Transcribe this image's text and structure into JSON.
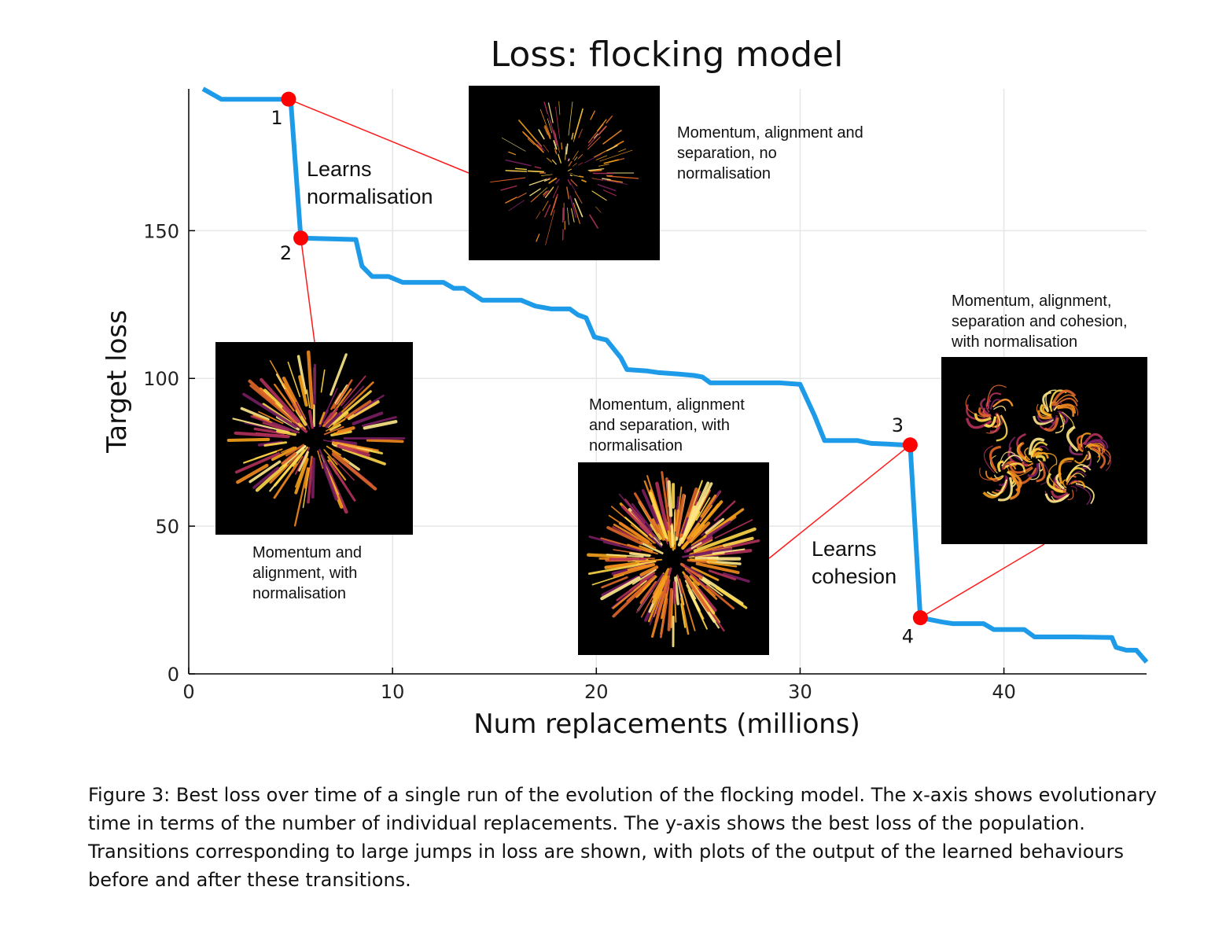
{
  "chart_data": {
    "type": "line",
    "title": "Loss: flocking model",
    "xlabel": "Num replacements (millions)",
    "ylabel": "Target loss",
    "xlim": [
      0,
      47
    ],
    "ylim": [
      0,
      198
    ],
    "xticks": [
      0,
      10,
      20,
      30,
      40
    ],
    "yticks": [
      0,
      50,
      100,
      150
    ],
    "grid": true,
    "color": "#1e9be8",
    "series": [
      {
        "points": [
          [
            0.7,
            198
          ],
          [
            1.6,
            194.5
          ],
          [
            4.9,
            194.5
          ],
          [
            5.0,
            194.5
          ],
          [
            5.5,
            147.5
          ],
          [
            8.2,
            147
          ],
          [
            8.5,
            138
          ],
          [
            9.0,
            134.5
          ],
          [
            9.8,
            134.5
          ],
          [
            10.5,
            132.5
          ],
          [
            12.5,
            132.5
          ],
          [
            13.0,
            130.5
          ],
          [
            13.5,
            130.5
          ],
          [
            14.4,
            126.5
          ],
          [
            16.3,
            126.5
          ],
          [
            17.0,
            124.5
          ],
          [
            17.8,
            123.5
          ],
          [
            18.7,
            123.5
          ],
          [
            19.1,
            121.5
          ],
          [
            19.5,
            120.5
          ],
          [
            19.9,
            114
          ],
          [
            20.5,
            113
          ],
          [
            21.2,
            107
          ],
          [
            21.5,
            103
          ],
          [
            22.5,
            102.5
          ],
          [
            23.0,
            102
          ],
          [
            24.0,
            101.5
          ],
          [
            24.8,
            101
          ],
          [
            25.2,
            100.5
          ],
          [
            25.6,
            98.5
          ],
          [
            26.5,
            98.5
          ],
          [
            29.0,
            98.5
          ],
          [
            30.0,
            98
          ],
          [
            30.7,
            87.5
          ],
          [
            31.2,
            79
          ],
          [
            32.8,
            79
          ],
          [
            33.5,
            78
          ],
          [
            34.3,
            77.8
          ],
          [
            35.0,
            77.5
          ],
          [
            35.4,
            77.5
          ],
          [
            35.9,
            19
          ],
          [
            37.0,
            17.5
          ],
          [
            37.5,
            17
          ],
          [
            39.0,
            17
          ],
          [
            39.5,
            15
          ],
          [
            41.0,
            15
          ],
          [
            41.5,
            12.5
          ],
          [
            43.5,
            12.5
          ],
          [
            45.3,
            12.3
          ],
          [
            45.5,
            9
          ],
          [
            46.0,
            8
          ],
          [
            46.5,
            8
          ],
          [
            47.0,
            4
          ]
        ]
      }
    ],
    "highlights": [
      {
        "label": "1",
        "x": 4.9,
        "y": 194.5
      },
      {
        "label": "2",
        "x": 5.5,
        "y": 147.5
      },
      {
        "label": "3",
        "x": 35.4,
        "y": 77.5
      },
      {
        "label": "4",
        "x": 35.9,
        "y": 19
      }
    ],
    "highlight_color": "#ff0000",
    "annotations": [
      {
        "key": "learns_norm",
        "lines": [
          "Learns",
          "normalisation"
        ]
      },
      {
        "key": "learns_coh",
        "lines": [
          "Learns",
          "cohesion"
        ]
      }
    ],
    "insets": [
      {
        "key": "inset1",
        "style": "sparse",
        "caption": [
          "Momentum, alignment and",
          "separation, no",
          "normalisation"
        ]
      },
      {
        "key": "inset2",
        "style": "burst",
        "caption": [
          "Momentum and",
          "alignment, with",
          "normalisation"
        ]
      },
      {
        "key": "inset3",
        "style": "dense",
        "caption": [
          "Momentum, alignment",
          "and separation, with",
          "normalisation"
        ]
      },
      {
        "key": "inset4",
        "style": "swirl",
        "caption": [
          "Momentum, alignment,",
          "separation and cohesion,",
          "with normalisation"
        ]
      }
    ]
  },
  "caption": "Figure 3: Best loss over time of a single run of the evolution of the flocking model. The x-axis shows evolutionary time in terms of the number of individual replacements. The y-axis shows the best loss of the population. Transitions corresponding to large jumps in loss are shown, with plots of the output of the learned behaviours before and after these transitions."
}
